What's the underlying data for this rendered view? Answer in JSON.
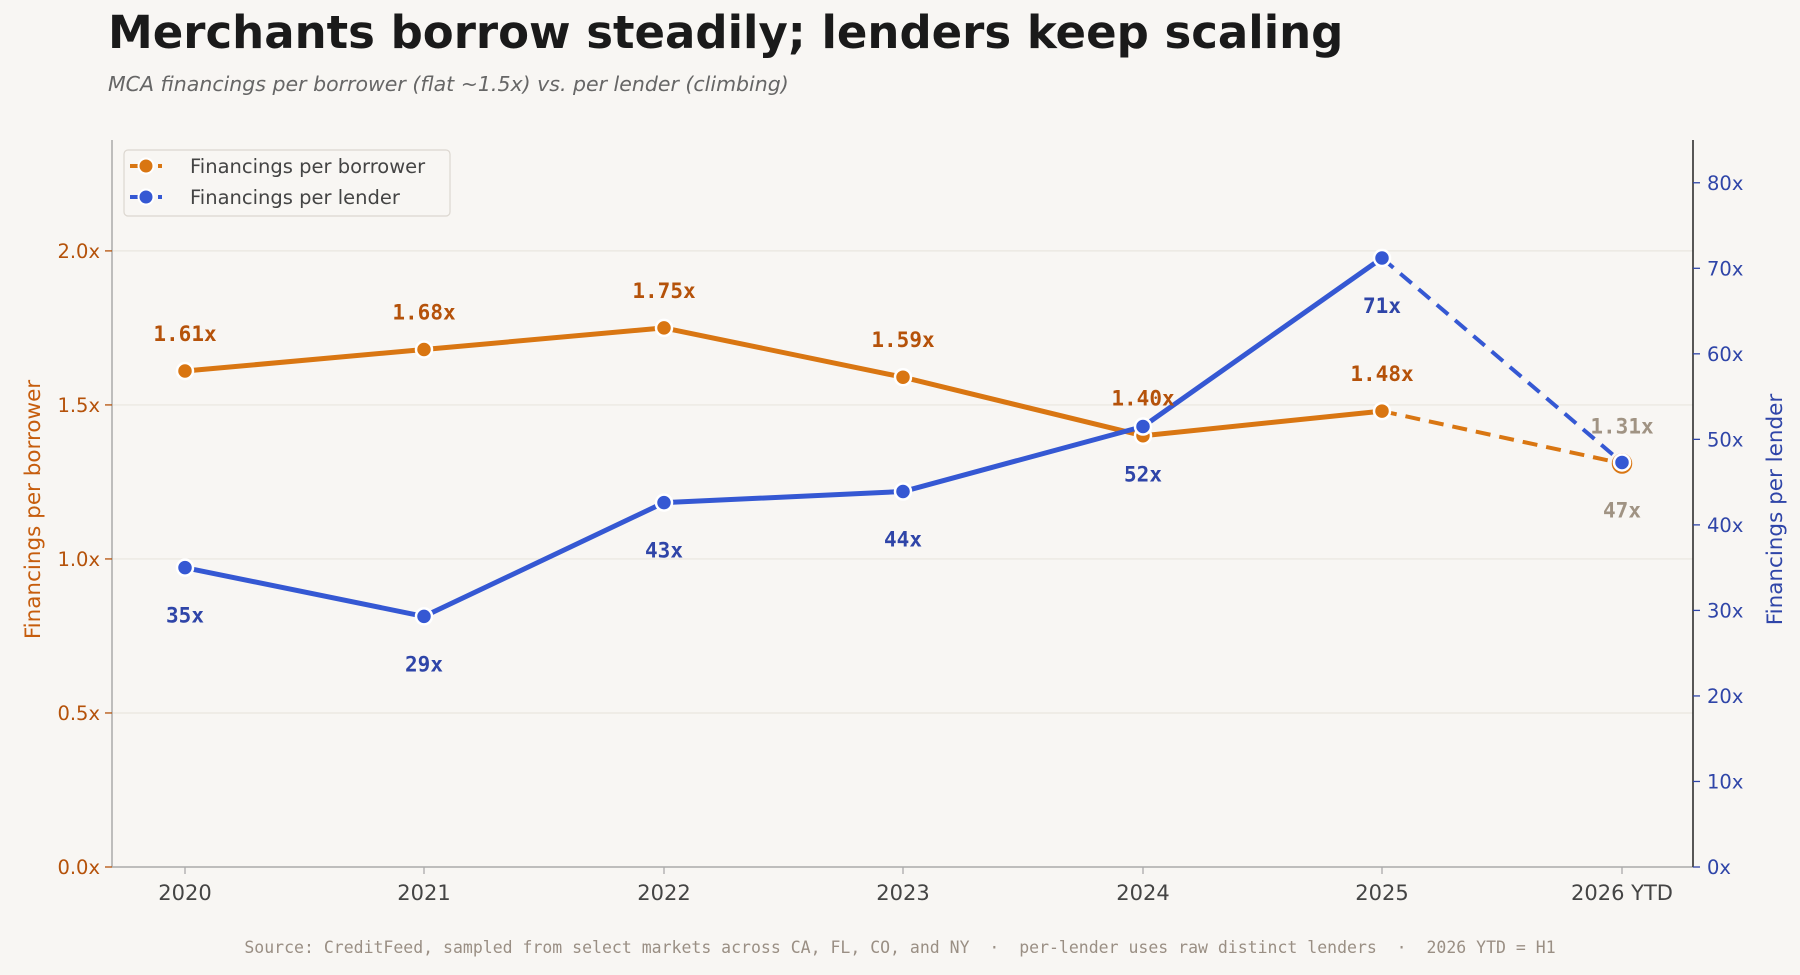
{
  "title": "Merchants borrow steadily; lenders keep scaling",
  "subtitle": "MCA financings per borrower (flat ~1.5x) vs. per lender (climbing)",
  "source": "Source: CreditFeed, sampled from select markets across CA, FL, CO, and NY  ·  per-lender uses raw distinct lenders  ·  2026 YTD = H1",
  "colors": {
    "borrower_line": "#d97612",
    "borrower_label": "#b5520a",
    "lender_line": "#3558d3",
    "lender_label": "#2f45a8",
    "partial_label": "#a09383",
    "background": "#f8f6f3"
  },
  "chart_data": {
    "type": "line",
    "categories": [
      "2020",
      "2021",
      "2022",
      "2023",
      "2024",
      "2025",
      "2026 YTD"
    ],
    "partial_category": "2026 YTD",
    "y_left": {
      "label": "Financings per borrower",
      "ylim": [
        0,
        2.36
      ],
      "ticks": [
        0,
        0.5,
        1.0,
        1.5,
        2.0
      ],
      "tick_labels": [
        "0.0x",
        "0.5x",
        "1.0x",
        "1.5x",
        "2.0x"
      ]
    },
    "y_right": {
      "label": "Financings per lender",
      "ylim": [
        0,
        85
      ],
      "ticks": [
        0,
        10,
        20,
        30,
        40,
        50,
        60,
        70,
        80
      ],
      "tick_labels": [
        "0x",
        "10x",
        "20x",
        "30x",
        "40x",
        "50x",
        "60x",
        "70x",
        "80x"
      ]
    },
    "grid": true,
    "legend_position": "top-left",
    "series": [
      {
        "name": "Financings per borrower",
        "axis": "left",
        "values": [
          1.61,
          1.68,
          1.75,
          1.59,
          1.4,
          1.48,
          1.31
        ],
        "labels": [
          "1.61x",
          "1.68x",
          "1.75x",
          "1.59x",
          "1.40x",
          "1.48x",
          "1.31x"
        ],
        "label_position": "above"
      },
      {
        "name": "Financings per lender",
        "axis": "right",
        "values": [
          35,
          29.3,
          42.6,
          43.9,
          51.5,
          71.2,
          47.3
        ],
        "labels": [
          "35x",
          "29x",
          "43x",
          "44x",
          "52x",
          "71x",
          "47x"
        ],
        "label_position": "below"
      }
    ]
  }
}
